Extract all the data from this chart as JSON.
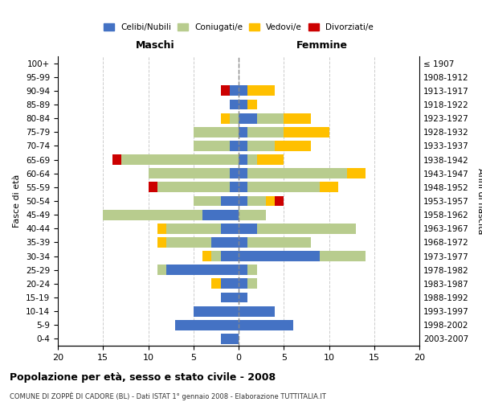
{
  "age_groups": [
    "0-4",
    "5-9",
    "10-14",
    "15-19",
    "20-24",
    "25-29",
    "30-34",
    "35-39",
    "40-44",
    "45-49",
    "50-54",
    "55-59",
    "60-64",
    "65-69",
    "70-74",
    "75-79",
    "80-84",
    "85-89",
    "90-94",
    "95-99",
    "100+"
  ],
  "birth_years": [
    "2003-2007",
    "1998-2002",
    "1993-1997",
    "1988-1992",
    "1983-1987",
    "1978-1982",
    "1973-1977",
    "1968-1972",
    "1963-1967",
    "1958-1962",
    "1953-1957",
    "1948-1952",
    "1943-1947",
    "1938-1942",
    "1933-1937",
    "1928-1932",
    "1923-1927",
    "1918-1922",
    "1913-1917",
    "1908-1912",
    "≤ 1907"
  ],
  "male": {
    "celibi": [
      2,
      7,
      5,
      2,
      2,
      8,
      2,
      3,
      2,
      4,
      2,
      1,
      1,
      0,
      1,
      0,
      0,
      1,
      1,
      0,
      0
    ],
    "coniugati": [
      0,
      0,
      0,
      0,
      0,
      1,
      1,
      5,
      6,
      11,
      3,
      8,
      9,
      13,
      4,
      5,
      1,
      0,
      0,
      0,
      0
    ],
    "vedovi": [
      0,
      0,
      0,
      0,
      1,
      0,
      1,
      1,
      1,
      0,
      0,
      0,
      0,
      0,
      0,
      0,
      1,
      0,
      0,
      0,
      0
    ],
    "divorziati": [
      0,
      0,
      0,
      0,
      0,
      0,
      0,
      0,
      0,
      0,
      0,
      1,
      0,
      1,
      0,
      0,
      0,
      0,
      1,
      0,
      0
    ]
  },
  "female": {
    "nubili": [
      0,
      6,
      4,
      1,
      1,
      1,
      9,
      1,
      2,
      0,
      1,
      1,
      1,
      1,
      1,
      1,
      2,
      1,
      1,
      0,
      0
    ],
    "coniugate": [
      0,
      0,
      0,
      0,
      1,
      1,
      5,
      7,
      11,
      3,
      2,
      8,
      11,
      1,
      3,
      4,
      3,
      0,
      0,
      0,
      0
    ],
    "vedove": [
      0,
      0,
      0,
      0,
      0,
      0,
      0,
      0,
      0,
      0,
      1,
      2,
      2,
      3,
      4,
      5,
      3,
      1,
      3,
      0,
      0
    ],
    "divorziate": [
      0,
      0,
      0,
      0,
      0,
      0,
      0,
      0,
      0,
      0,
      1,
      0,
      0,
      0,
      0,
      0,
      0,
      0,
      0,
      0,
      0
    ]
  },
  "colors": {
    "celibi_nubili": "#4472c4",
    "coniugati": "#b8cc8e",
    "vedovi": "#ffc000",
    "divorziati": "#cc0000"
  },
  "xlim": [
    -20,
    20
  ],
  "xticks": [
    -20,
    -15,
    -10,
    -5,
    0,
    5,
    10,
    15,
    20
  ],
  "xtick_labels": [
    "20",
    "15",
    "10",
    "5",
    "0",
    "5",
    "10",
    "15",
    "20"
  ],
  "title": "Popolazione per età, sesso e stato civile - 2008",
  "subtitle": "COMUNE DI ZOPPÈ DI CADORE (BL) - Dati ISTAT 1° gennaio 2008 - Elaborazione TUTTITALIA.IT",
  "ylabel_left": "Fasce di età",
  "ylabel_right": "Anni di nascita",
  "header_left": "Maschi",
  "header_right": "Femmine",
  "legend_labels": [
    "Celibi/Nubili",
    "Coniugati/e",
    "Vedovi/e",
    "Divorziati/e"
  ]
}
